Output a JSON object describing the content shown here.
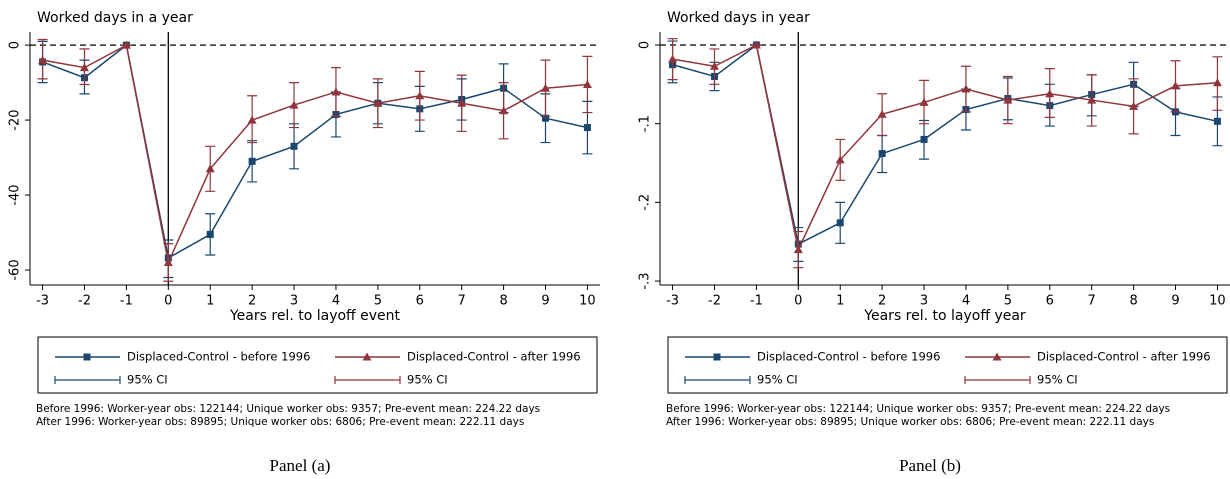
{
  "chart_data": [
    {
      "type": "line",
      "title": "Worked days in a year",
      "x_label": "Years rel. to layoff event",
      "x": [
        -3,
        -2,
        -1,
        0,
        1,
        2,
        3,
        4,
        5,
        6,
        7,
        8,
        9,
        10
      ],
      "xlim": [
        -3.3,
        10.3
      ],
      "xticks": [
        -3,
        -2,
        -1,
        0,
        1,
        2,
        3,
        4,
        5,
        6,
        7,
        8,
        9,
        10
      ],
      "ylim": [
        -64,
        3.5
      ],
      "yticks": [
        0,
        -20,
        -40,
        -60
      ],
      "hline": 0,
      "vline": 0,
      "series": [
        {
          "name": "Displaced-Control - before 1996",
          "ci_label": "95% CI",
          "color": "#1a476f",
          "marker": "square",
          "values": [
            -4.5,
            -8.7,
            0,
            -56.8,
            -50.5,
            -31,
            -27,
            -18.5,
            -15.5,
            -17,
            -14.5,
            -11.5,
            -19.5,
            -22
          ],
          "ci_low": [
            -10,
            -13,
            0,
            -62,
            -56,
            -36.5,
            -33,
            -24.5,
            -21,
            -23,
            -20,
            -18,
            -26,
            -29
          ],
          "ci_high": [
            1,
            -4,
            0,
            -52,
            -45,
            -25.5,
            -21,
            -12.5,
            -10,
            -11,
            -9,
            -5,
            -13,
            -15
          ]
        },
        {
          "name": "Displaced-Control - after 1996",
          "ci_label": "95% CI",
          "color": "#90353b",
          "marker": "triangle",
          "values": [
            -4,
            -6,
            0,
            -58,
            -33,
            -20,
            -16,
            -12.5,
            -15.5,
            -13.5,
            -15.5,
            -17.5,
            -11.5,
            -10.5
          ],
          "ci_low": [
            -9,
            -10.5,
            0,
            -63,
            -39,
            -26,
            -22,
            -19,
            -22,
            -20,
            -23,
            -25,
            -19,
            -18
          ],
          "ci_high": [
            1.5,
            -1,
            0,
            -53,
            -27,
            -13.5,
            -10,
            -6,
            -9,
            -7,
            -8,
            -10,
            -4,
            -3
          ]
        }
      ],
      "notes": [
        "Before 1996: Worker-year obs: 122144; Unique worker obs: 9357; Pre-event mean: 224.22 days",
        "After 1996: Worker-year obs: 89895; Unique worker obs: 6806; Pre-event mean: 222.11 days"
      ],
      "caption": "Panel (a)"
    },
    {
      "type": "line",
      "title": "Worked days in year",
      "x_label": "Years rel. to layoff year",
      "x": [
        -3,
        -2,
        -1,
        0,
        1,
        2,
        3,
        4,
        5,
        6,
        7,
        8,
        9,
        10
      ],
      "xlim": [
        -3.3,
        10.3
      ],
      "xticks": [
        -3,
        -2,
        -1,
        0,
        1,
        2,
        3,
        4,
        5,
        6,
        7,
        8,
        9,
        10
      ],
      "ylim": [
        -0.305,
        0.0165
      ],
      "yticks": [
        0,
        {
          "value": -0.1,
          "label": "-.1"
        },
        {
          "value": -0.2,
          "label": "-.2"
        },
        {
          "value": -0.3,
          "label": "-.3"
        }
      ],
      "hline": 0,
      "vline": 0,
      "series": [
        {
          "name": "Displaced-Control - before 1996",
          "ci_label": "95% CI",
          "color": "#1a476f",
          "marker": "square",
          "values": [
            -0.025,
            -0.04,
            0,
            -0.253,
            -0.226,
            -0.138,
            -0.12,
            -0.082,
            -0.068,
            -0.077,
            -0.063,
            -0.05,
            -0.085,
            -0.097
          ],
          "ci_low": [
            -0.048,
            -0.058,
            0,
            -0.275,
            -0.252,
            -0.162,
            -0.145,
            -0.108,
            -0.095,
            -0.103,
            -0.09,
            -0.078,
            -0.115,
            -0.128
          ],
          "ci_high": [
            0.005,
            -0.022,
            0,
            -0.232,
            -0.2,
            -0.115,
            -0.096,
            -0.056,
            -0.042,
            -0.05,
            -0.038,
            -0.022,
            -0.055,
            -0.066
          ]
        },
        {
          "name": "Displaced-Control - after 1996",
          "ci_label": "95% CI",
          "color": "#90353b",
          "marker": "triangle",
          "values": [
            -0.018,
            -0.027,
            0,
            -0.26,
            -0.146,
            -0.088,
            -0.073,
            -0.056,
            -0.07,
            -0.062,
            -0.07,
            -0.078,
            -0.052,
            -0.048
          ],
          "ci_low": [
            -0.044,
            -0.05,
            0,
            -0.283,
            -0.172,
            -0.115,
            -0.1,
            -0.085,
            -0.1,
            -0.092,
            -0.103,
            -0.113,
            -0.085,
            -0.083
          ],
          "ci_high": [
            0.008,
            -0.005,
            0,
            -0.237,
            -0.12,
            -0.062,
            -0.045,
            -0.027,
            -0.04,
            -0.03,
            -0.038,
            -0.043,
            -0.02,
            -0.015
          ]
        }
      ],
      "notes": [
        "Before 1996: Worker-year obs: 122144; Unique worker obs: 9357; Pre-event mean: 224.22 days",
        "After 1996: Worker-year obs: 89895; Unique worker obs: 6806; Pre-event mean: 222.11 days"
      ],
      "caption": "Panel (b)"
    }
  ]
}
